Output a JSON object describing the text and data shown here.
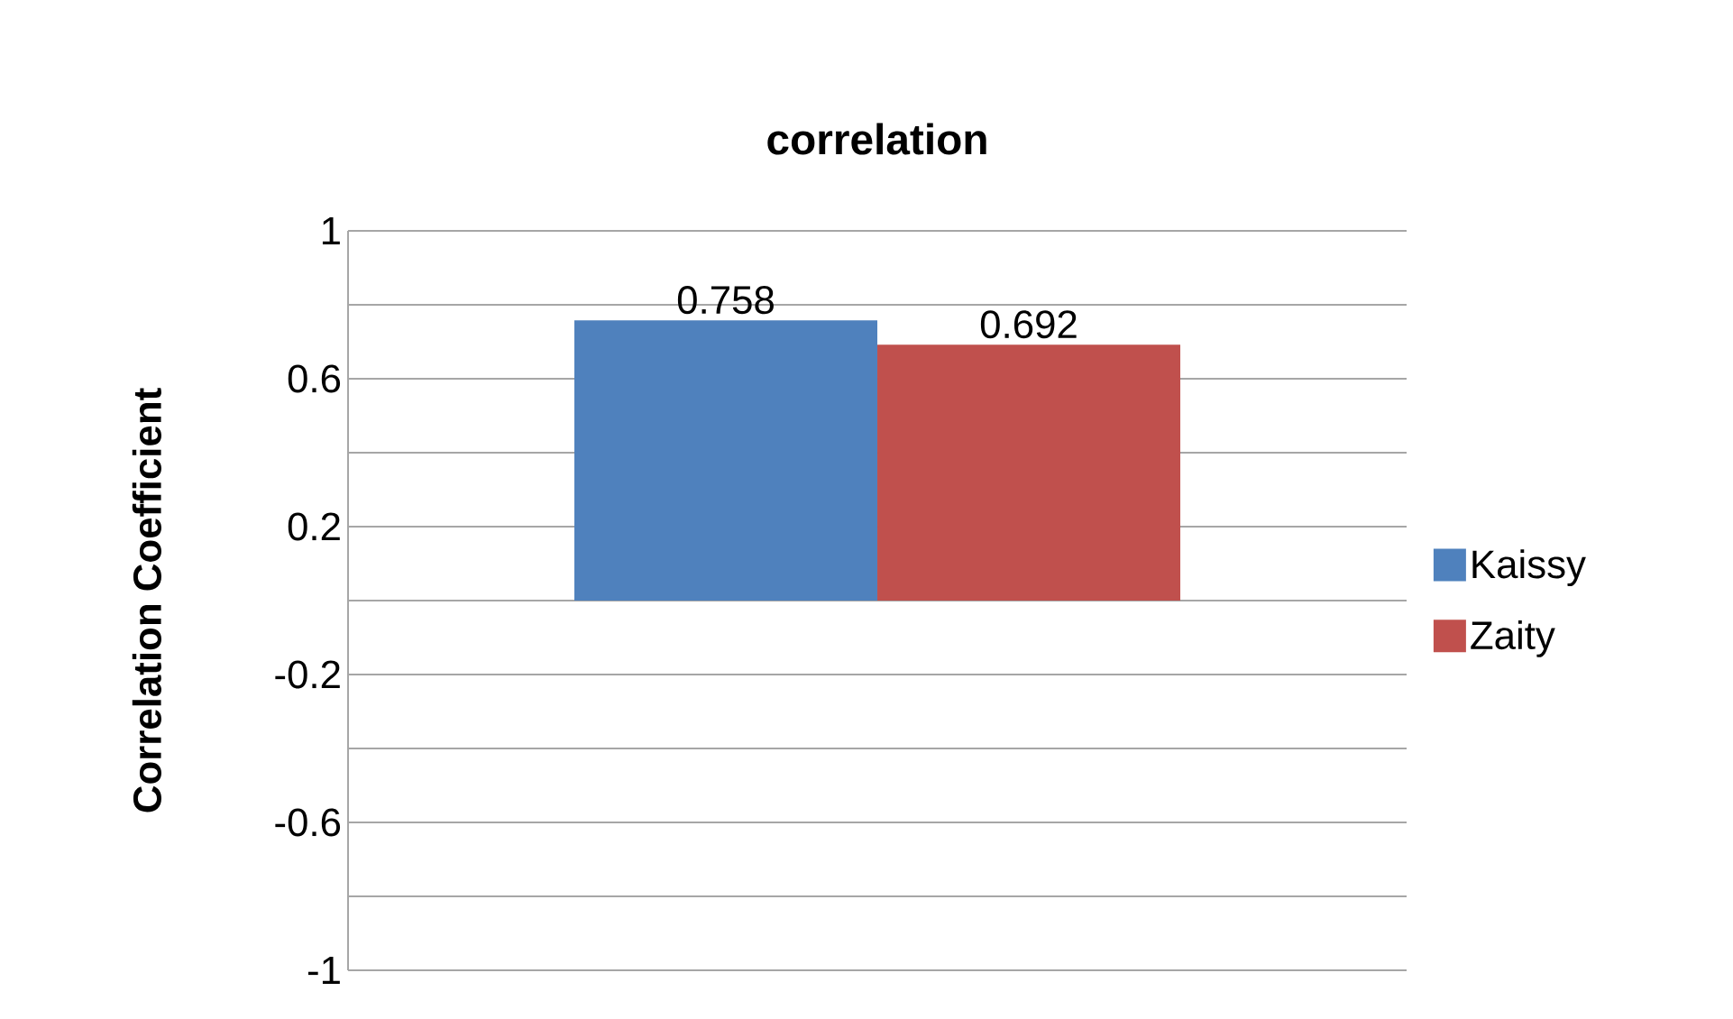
{
  "chart_data": {
    "type": "bar",
    "title": "correlation",
    "ylabel": "Correlation Coefficient",
    "categories": [
      null
    ],
    "series": [
      {
        "name": "Kaissy",
        "color": "#4f81bd",
        "values": [
          0.758
        ]
      },
      {
        "name": "Zaity",
        "color": "#c0504d",
        "values": [
          0.692
        ]
      }
    ],
    "ylim": [
      -1,
      1
    ],
    "yticks": [
      -1,
      {
        "value": -0.8,
        "label": null
      },
      -0.6,
      {
        "value": -0.4,
        "label": null
      },
      -0.2,
      {
        "value": 0,
        "label": null
      },
      0.2,
      {
        "value": 0.4,
        "label": null
      },
      0.6,
      {
        "value": 0.8,
        "label": null
      },
      1
    ],
    "grid": "y",
    "legend": "right",
    "data_labels": true
  }
}
